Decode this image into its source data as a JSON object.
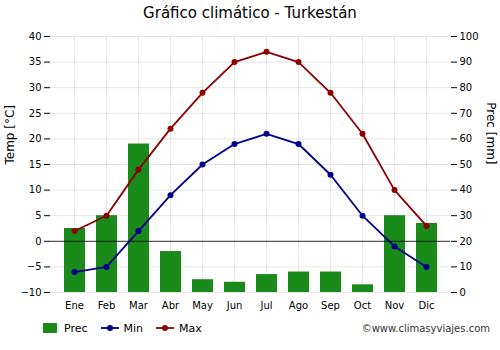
{
  "chart_data": {
    "type": "bar",
    "title": "Gráfico climático - Turkestán",
    "categories": [
      "Ene",
      "Feb",
      "Mar",
      "Abr",
      "May",
      "Jun",
      "Jul",
      "Ago",
      "Sep",
      "Oct",
      "Nov",
      "Dic"
    ],
    "series": [
      {
        "name": "Prec",
        "type": "bar",
        "axis": "y2",
        "color": "#1a8a1a",
        "values": [
          25,
          30,
          58,
          16,
          5,
          4,
          7,
          8,
          8,
          3,
          30,
          27
        ]
      },
      {
        "name": "Min",
        "type": "line",
        "marker": "circle",
        "color": "#00008b",
        "values": [
          -6,
          -5,
          2,
          9,
          15,
          19,
          21,
          19,
          13,
          5,
          -1,
          -5
        ]
      },
      {
        "name": "Max",
        "type": "line",
        "marker": "circle",
        "color": "#8b0000",
        "values": [
          2,
          5,
          14,
          22,
          29,
          35,
          37,
          35,
          29,
          21,
          10,
          3
        ]
      }
    ],
    "ylabel": "Temp [°C]",
    "y2label": "Prec [mm]",
    "ylim": [
      -10,
      40
    ],
    "yticks": [
      -10,
      -5,
      0,
      5,
      10,
      15,
      20,
      25,
      30,
      35,
      40
    ],
    "y2lim": [
      0,
      100
    ],
    "y2ticks": [
      0,
      10,
      20,
      30,
      40,
      50,
      60,
      70,
      80,
      90,
      100
    ],
    "grid": true,
    "legend": "lower left",
    "annotations": [
      "©www.climasyviajes.com"
    ]
  }
}
